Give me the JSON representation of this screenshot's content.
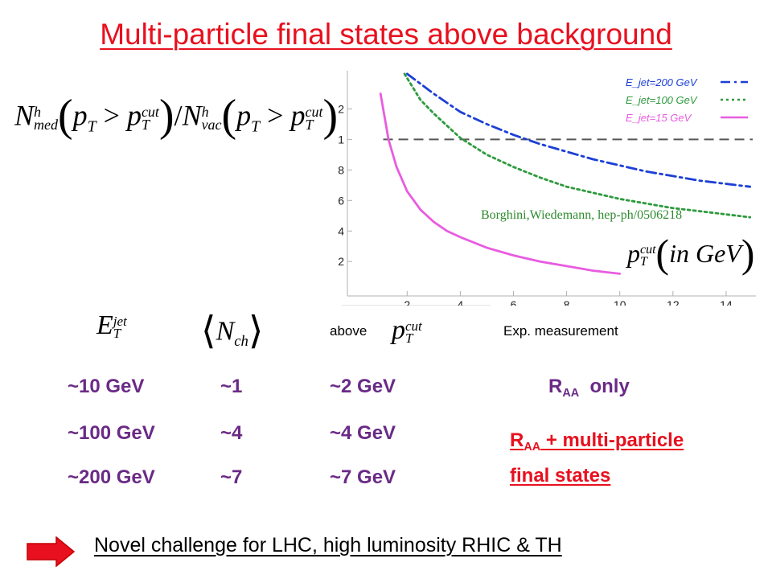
{
  "title": "Multi-particle final states above background",
  "citation": "Borghini,Wiedemann, hep-ph/0506218",
  "colors": {
    "title": "#e8101e",
    "table_rows": "#6a2a86",
    "highlight": "#e8101e",
    "arrow": "#e8101e"
  },
  "chart_data": {
    "type": "line",
    "title": "",
    "xlabel": "p_T^cut (in GeV)",
    "ylabel": "",
    "xlim": [
      0.6,
      15
    ],
    "ylim": [
      0.08,
      1.45
    ],
    "x_ticks": [
      "2",
      "4",
      "6",
      "8",
      "10",
      "12",
      "14"
    ],
    "y_ticks": [
      "0.2",
      "0.4",
      "0.6",
      "0.8",
      "1",
      "1.2"
    ],
    "legend_position": "top-right",
    "grid": false,
    "reference_line": {
      "y": 1.0,
      "style": "dashed",
      "color": "#555555"
    },
    "series": [
      {
        "name": "E_jet=200 GeV",
        "color": "#1c3fd6",
        "style": "dashdot",
        "x": [
          2,
          3,
          4,
          5,
          6,
          7,
          8,
          9,
          10,
          11,
          12,
          13,
          14.9
        ],
        "y": [
          1.43,
          1.3,
          1.18,
          1.1,
          1.03,
          0.97,
          0.92,
          0.87,
          0.83,
          0.79,
          0.76,
          0.73,
          0.69
        ]
      },
      {
        "name": "E_jet=100 GeV",
        "color": "#2e9a3e",
        "style": "dotted",
        "x": [
          1.9,
          2.5,
          3,
          4,
          5,
          6,
          7,
          8,
          9,
          10,
          11,
          12,
          13,
          14.9
        ],
        "y": [
          1.43,
          1.26,
          1.17,
          1.01,
          0.9,
          0.82,
          0.75,
          0.69,
          0.65,
          0.61,
          0.58,
          0.55,
          0.53,
          0.49
        ]
      },
      {
        "name": "E_jet=15 GeV",
        "color": "#e85ce0",
        "style": "solid",
        "x": [
          1.0,
          1.3,
          1.6,
          2.0,
          2.5,
          3,
          3.5,
          4,
          5,
          6,
          7,
          8,
          9,
          10
        ],
        "y": [
          1.3,
          1.0,
          0.82,
          0.66,
          0.54,
          0.46,
          0.4,
          0.36,
          0.29,
          0.24,
          0.2,
          0.17,
          0.14,
          0.12
        ]
      }
    ]
  },
  "ratio_formula": {
    "N": "N",
    "h": "h",
    "med": "med",
    "vac": "vac",
    "p": "p",
    "T": "T",
    "cut": "cut",
    "gt": ">",
    "slash": "/"
  },
  "table": {
    "headers": {
      "ejet": {
        "E": "E",
        "T": "T",
        "jet": "jet"
      },
      "nch": {
        "N": "N",
        "ch": "ch"
      },
      "above": {
        "label": "above",
        "p": "p",
        "T": "T",
        "cut": "cut"
      },
      "exp": "Exp. measurement"
    },
    "rows": [
      {
        "ejet": "~10 GeV",
        "nch": "~1",
        "pcut": "~2 GeV"
      },
      {
        "ejet": "~100 GeV",
        "nch": "~4",
        "pcut": "~4 GeV"
      },
      {
        "ejet": "~200 GeV",
        "nch": "~7",
        "pcut": "~7 GeV"
      }
    ],
    "raa_only": {
      "R": "R",
      "AA": "AA",
      "rest": "only"
    },
    "raa_multi": {
      "R": "R",
      "AA": "AA",
      "line1": "+ multi-particle",
      "line2": "final states"
    }
  },
  "footer": "Novel challenge for LHC, high luminosity RHIC & TH"
}
